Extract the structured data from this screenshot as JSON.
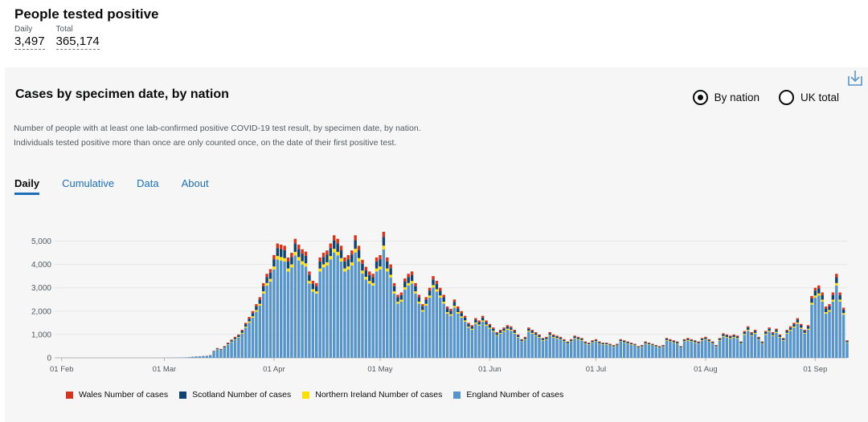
{
  "headline": {
    "title": "People tested positive",
    "daily_label": "Daily",
    "daily_value": "3,497",
    "total_label": "Total",
    "total_value": "365,174"
  },
  "card": {
    "title": "Cases by specimen date, by nation",
    "download_icon": "download-icon",
    "radio_by_nation": "By nation",
    "radio_uk_total": "UK total",
    "selected_radio": "By nation",
    "description": "Number of people with at least one lab-confirmed positive COVID-19 test result, by specimen date, by nation. Individuals tested positive more than once are only counted once, on the date of their first positive test.",
    "tabs": [
      "Daily",
      "Cumulative",
      "Data",
      "About"
    ],
    "active_tab": "Daily"
  },
  "colors": {
    "wales": "#d4351c",
    "scotland": "#12436d",
    "northern_ireland": "#ffdd00",
    "england": "#5694ca",
    "accent": "#1d70b8"
  },
  "chart_data": {
    "type": "bar",
    "stacked": true,
    "x_start": "2020-01-30",
    "x_end": "2020-09-10",
    "x_ticks": [
      "01 Feb",
      "01 Mar",
      "01 Apr",
      "01 May",
      "01 Jun",
      "01 Jul",
      "01 Aug",
      "01 Sep"
    ],
    "y_ticks": [
      "0",
      "1,000",
      "2,000",
      "3,000",
      "4,000",
      "5,000"
    ],
    "ylim": [
      0,
      5500
    ],
    "grid": true,
    "legend_position": "bottom",
    "series": [
      {
        "name": "Wales Number of cases",
        "color": "#d4351c"
      },
      {
        "name": "Scotland Number of cases",
        "color": "#12436d"
      },
      {
        "name": "Northern Ireland Number of cases",
        "color": "#ffdd00"
      },
      {
        "name": "England Number of cases",
        "color": "#5694ca"
      }
    ],
    "daily_totals": [
      0,
      0,
      0,
      0,
      0,
      0,
      0,
      0,
      0,
      0,
      0,
      0,
      0,
      0,
      0,
      0,
      0,
      0,
      0,
      0,
      0,
      0,
      0,
      0,
      0,
      0,
      0,
      0,
      0,
      0,
      2,
      3,
      5,
      6,
      8,
      10,
      15,
      20,
      30,
      50,
      60,
      70,
      80,
      90,
      120,
      300,
      420,
      380,
      500,
      650,
      780,
      900,
      1000,
      1200,
      1500,
      1750,
      2000,
      2300,
      2600,
      3200,
      3600,
      3800,
      4400,
      4900,
      4850,
      4800,
      4300,
      4500,
      5100,
      4850,
      4650,
      4550,
      3700,
      3300,
      3200,
      4300,
      4500,
      4600,
      4900,
      5250,
      5100,
      4800,
      4300,
      4400,
      4600,
      5250,
      4800,
      4200,
      3900,
      3700,
      3600,
      4300,
      4400,
      5400,
      4300,
      4000,
      3200,
      2700,
      2800,
      3400,
      3600,
      3700,
      3200,
      2700,
      2300,
      2600,
      3000,
      3500,
      3300,
      3000,
      2700,
      2200,
      2100,
      2500,
      2200,
      2000,
      1800,
      1500,
      1400,
      1700,
      1600,
      1800,
      1600,
      1450,
      1300,
      1100,
      1200,
      1300,
      1400,
      1350,
      1200,
      1000,
      800,
      900,
      1300,
      1200,
      1100,
      1000,
      850,
      900,
      1100,
      1000,
      950,
      900,
      800,
      700,
      800,
      950,
      900,
      850,
      700,
      650,
      750,
      800,
      700,
      650,
      650,
      600,
      550,
      600,
      800,
      750,
      700,
      650,
      600,
      500,
      550,
      700,
      650,
      600,
      550,
      500,
      550,
      850,
      800,
      750,
      700,
      500,
      800,
      850,
      800,
      750,
      700,
      850,
      900,
      800,
      700,
      550,
      850,
      1050,
      1000,
      950,
      1000,
      950,
      700,
      1150,
      1350,
      1100,
      1200,
      900,
      700,
      1150,
      1300,
      1100,
      1250,
      1000,
      850,
      1200,
      1350,
      1500,
      1700,
      1450,
      1200,
      1400,
      2650,
      3000,
      3100,
      2800,
      2200,
      2300,
      2800,
      3600,
      2800,
      2150,
      750
    ]
  }
}
